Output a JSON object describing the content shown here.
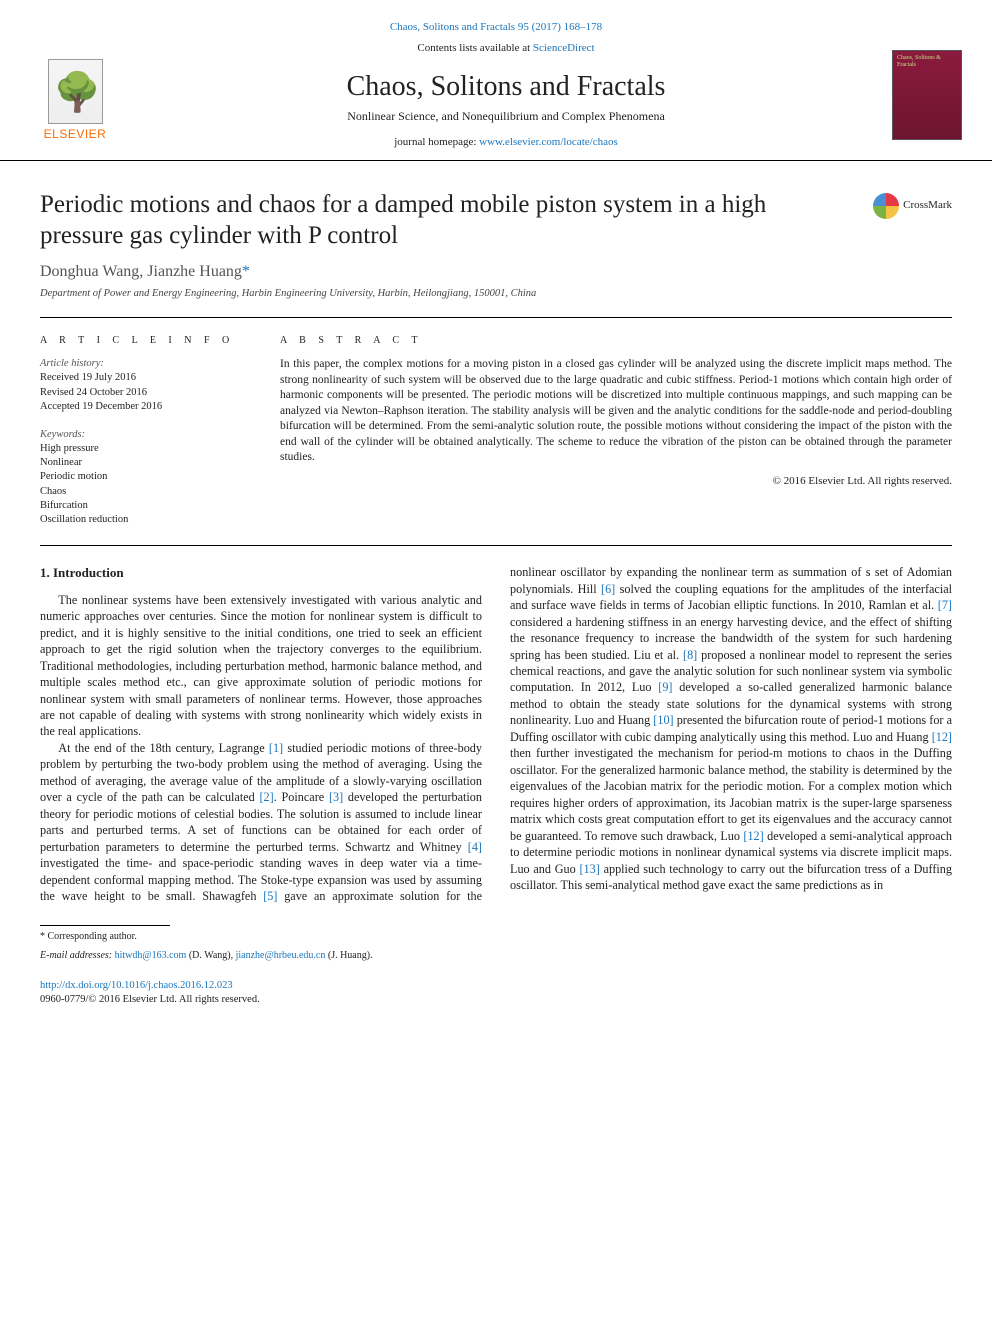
{
  "header": {
    "top_link_citation": "Chaos, Solitons and Fractals 95 (2017) 168–178",
    "contents_prefix": "Contents lists available at ",
    "contents_link": "ScienceDirect",
    "journal_title": "Chaos, Solitons and Fractals",
    "journal_subtitle": "Nonlinear Science, and Nonequilibrium and Complex Phenomena",
    "homepage_prefix": "journal homepage: ",
    "homepage_link": "www.elsevier.com/locate/chaos",
    "publisher_name": "ELSEVIER",
    "cover_text": "Chaos, Solitons & Fractals"
  },
  "title": "Periodic motions and chaos for a damped mobile piston system in a high pressure gas cylinder with P control",
  "crossmark_label": "CrossMark",
  "authors_line": "Donghua Wang, Jianzhe Huang",
  "corr_marker": "*",
  "affiliation": "Department of Power and Energy Engineering, Harbin Engineering University, Harbin, Heilongjiang, 150001, China",
  "article_info": {
    "heading": "A R T I C L E   I N F O",
    "history_label": "Article history:",
    "received": "Received 19 July 2016",
    "revised": "Revised 24 October 2016",
    "accepted": "Accepted 19 December 2016",
    "keywords_label": "Keywords:",
    "keywords": [
      "High pressure",
      "Nonlinear",
      "Periodic motion",
      "Chaos",
      "Bifurcation",
      "Oscillation reduction"
    ]
  },
  "abstract": {
    "heading": "A B S T R A C T",
    "text": "In this paper, the complex motions for a moving piston in a closed gas cylinder will be analyzed using the discrete implicit maps method. The strong nonlinearity of such system will be observed due to the large quadratic and cubic stiffness. Period-1 motions which contain high order of harmonic components will be presented. The periodic motions will be discretized into multiple continuous mappings, and such mapping can be analyzed via Newton–Raphson iteration. The stability analysis will be given and the analytic conditions for the saddle-node and period-doubling bifurcation will be determined. From the semi-analytic solution route, the possible motions without considering the impact of the piston with the end wall of the cylinder will be obtained analytically. The scheme to reduce the vibration of the piston can be obtained through the parameter studies.",
    "copyright": "© 2016 Elsevier Ltd. All rights reserved."
  },
  "section1": {
    "heading": "1. Introduction",
    "p1": "The nonlinear systems have been extensively investigated with various analytic and numeric approaches over centuries. Since the motion for nonlinear system is difficult to predict, and it is highly sensitive to the initial conditions, one tried to seek an efficient approach to get the rigid solution when the trajectory converges to the equilibrium. Traditional methodologies, including perturbation method, harmonic balance method, and multiple scales method etc., can give approximate solution of periodic motions for nonlinear system with small parameters of nonlinear terms. However, those approaches are not capable of dealing with systems with strong nonlinearity which widely exists in the real applications.",
    "p2a": "At the end of the 18th century, Lagrange ",
    "r1": "[1]",
    "p2b": " studied periodic motions of three-body problem by perturbing the two-body problem using the method of averaging. Using the method of averaging, the average value of the amplitude of a slowly-varying oscillation over a cycle of the path can be calculated ",
    "r2": "[2]",
    "p2c": ". Poincare ",
    "r3": "[3]",
    "p2d": " developed the perturbation theory for periodic motions of celestial bodies. The solution is assumed to include linear parts and perturbed terms. A set of functions can be obtained for each order of perturbation parameters to determine the perturbed terms. Schwartz and Whitney ",
    "r4": "[4]",
    "p2e": " investigated the time- and space-periodic standing waves in deep water via a time-dependent conformal mapping method. The Stoke-type expansion was used by assuming the wave height to be small. Shawagfeh ",
    "r5": "[5]",
    "p2f": " gave an approximate solution for the nonlinear oscillator by expanding the nonlinear term as summation of s set of Adomian polynomials. Hill ",
    "r6": "[6]",
    "p2g": " solved the coupling equations for the amplitudes of the interfacial and surface wave fields in terms of Jacobian elliptic functions. In 2010, Ramlan et al. ",
    "r7": "[7]",
    "p2h": " considered a hardening stiffness in an energy harvesting device, and the effect of shifting the resonance frequency to increase the bandwidth of the system for such hardening spring has been studied. Liu et al. ",
    "r8": "[8]",
    "p2i": " proposed a nonlinear model to represent the series chemical reactions, and gave the analytic solution for such nonlinear system via symbolic computation. In 2012, Luo ",
    "r9": "[9]",
    "p2j": " developed a so-called generalized harmonic balance method to obtain the steady state solutions for the dynamical systems with strong nonlinearity. Luo and Huang ",
    "r10": "[10]",
    "p2k": " presented the bifurcation route of period-1 motions for a Duffing oscillator with cubic damping analytically using this method. Luo and Huang ",
    "r12a": "[12]",
    "p2l": " then further investigated the mechanism for period-m motions to chaos in the Duffing oscillator. For the generalized harmonic balance method, the stability is determined by the eigenvalues of the Jacobian matrix for the periodic motion. For a complex motion which requires higher orders of approximation, its Jacobian matrix is the super-large sparseness matrix which costs great computation effort to get its eigenvalues and the accuracy cannot be guaranteed. To remove such drawback, Luo ",
    "r12b": "[12]",
    "p2m": " developed a semi-analytical approach to determine periodic motions in nonlinear dynamical systems via discrete implicit maps. Luo and Guo ",
    "r13": "[13]",
    "p2n": " applied such technology to carry out the bifurcation tress of a Duffing oscillator. This semi-analytical method gave exact the same predictions as in"
  },
  "footnote": {
    "corr_label": "* Corresponding author.",
    "email_label": "E-mail addresses:",
    "email1": "hitwdh@163.com",
    "email1_name": " (D. Wang), ",
    "email2": "jianzhe@hrbeu.edu.cn",
    "email2_name": " (J. Huang)."
  },
  "doi": {
    "link": "http://dx.doi.org/10.1016/j.chaos.2016.12.023",
    "issn_line": "0960-0779/© 2016 Elsevier Ltd. All rights reserved."
  },
  "colors": {
    "link": "#1b75bb",
    "publisher_orange": "#ff6b00",
    "cover_bg": "#8b1a3e"
  }
}
